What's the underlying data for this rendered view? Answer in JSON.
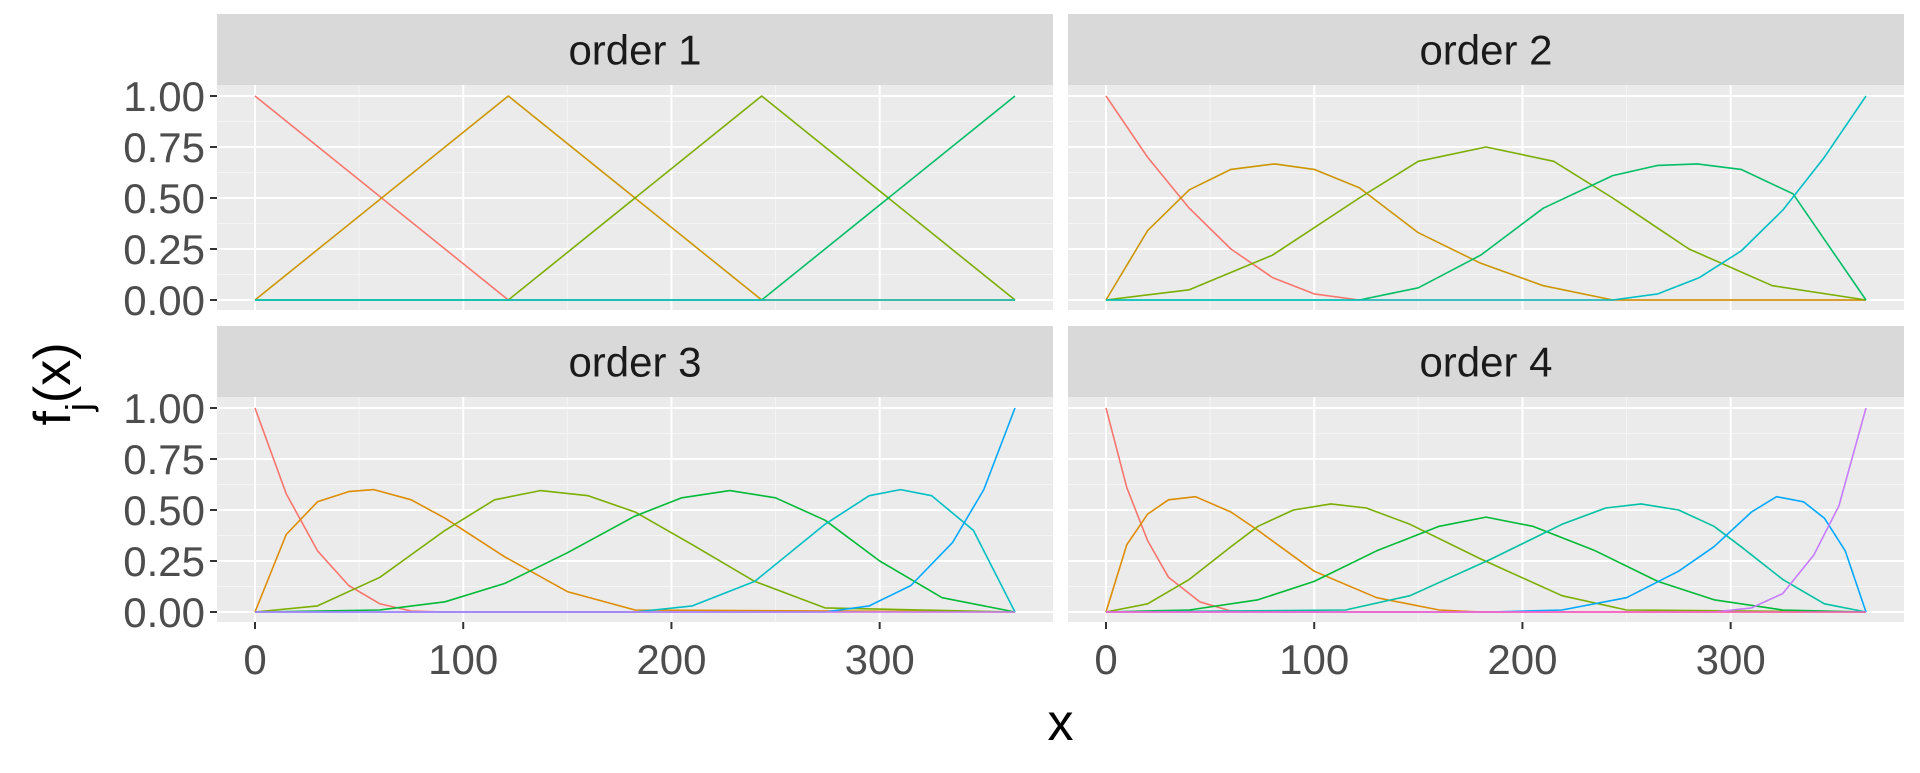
{
  "chart_data": {
    "type": "line",
    "xlabel": "x",
    "ylabel_base": "f",
    "ylabel_sub": "j",
    "ylabel_rest": "(x)",
    "x_range": [
      0,
      365
    ],
    "ylim": [
      0,
      1
    ],
    "x_ticks": [
      "0",
      "100",
      "200",
      "300"
    ],
    "x_tick_values": [
      0,
      100,
      200,
      300
    ],
    "y_ticks": [
      "0.00",
      "0.25",
      "0.50",
      "0.75",
      "1.00"
    ],
    "y_tick_values": [
      0,
      0.25,
      0.5,
      0.75,
      1.0
    ],
    "grid": true,
    "legend": "none",
    "panel_background": "#EBEBEB",
    "strip_background": "#D9D9D9",
    "panels": [
      {
        "title": "order 1",
        "series": [
          {
            "color": "#F8766D",
            "x": [
              0,
              121.67,
              365
            ],
            "y": [
              1,
              0,
              0
            ]
          },
          {
            "color": "#CD9600",
            "x": [
              0,
              121.67,
              243.33,
              365
            ],
            "y": [
              0,
              1,
              0,
              0
            ]
          },
          {
            "color": "#7CAE00",
            "x": [
              0,
              121.67,
              243.33,
              365
            ],
            "y": [
              0,
              0,
              1,
              0
            ]
          },
          {
            "color": "#00BE67",
            "x": [
              0,
              243.33,
              365
            ],
            "y": [
              0,
              0,
              1
            ]
          },
          {
            "color": "#00BFC4",
            "x": [
              0,
              365
            ],
            "y": [
              0,
              0
            ]
          }
        ]
      },
      {
        "title": "order 2",
        "series": [
          {
            "color": "#F8766D",
            "x": [
              0,
              20,
              40,
              60,
              80,
              100,
              121.67,
              365
            ],
            "y": [
              1,
              0.7,
              0.45,
              0.25,
              0.11,
              0.03,
              0,
              0
            ]
          },
          {
            "color": "#CD9600",
            "x": [
              0,
              20,
              40,
              60,
              81,
              100,
              121.67,
              150,
              180,
              210,
              243.33,
              365
            ],
            "y": [
              0,
              0.34,
              0.54,
              0.64,
              0.667,
              0.64,
              0.55,
              0.33,
              0.18,
              0.07,
              0,
              0
            ]
          },
          {
            "color": "#7CAE00",
            "x": [
              0,
              40,
              80,
              121.67,
              150,
              182.5,
              215,
              243.33,
              280,
              320,
              365
            ],
            "y": [
              0,
              0.05,
              0.22,
              0.5,
              0.68,
              0.75,
              0.68,
              0.5,
              0.25,
              0.07,
              0
            ]
          },
          {
            "color": "#00BE67",
            "x": [
              0,
              121.67,
              150,
              180,
              210,
              243.33,
              265,
              284,
              305,
              330,
              365
            ],
            "y": [
              0,
              0,
              0.06,
              0.22,
              0.45,
              0.61,
              0.66,
              0.667,
              0.64,
              0.52,
              0
            ]
          },
          {
            "color": "#00BFC4",
            "x": [
              0,
              243.33,
              265,
              285,
              305,
              325,
              345,
              365
            ],
            "y": [
              0,
              0,
              0.03,
              0.11,
              0.24,
              0.44,
              0.7,
              1
            ]
          }
        ]
      },
      {
        "title": "order 3",
        "series": [
          {
            "color": "#F8766D",
            "x": [
              0,
              15,
              30,
              45,
              60,
              75,
              91.25,
              365
            ],
            "y": [
              1,
              0.58,
              0.3,
              0.13,
              0.04,
              0.005,
              0,
              0
            ]
          },
          {
            "color": "#DE8C00",
            "x": [
              0,
              15,
              30,
              45,
              57,
              75,
              91.25,
              120,
              150,
              182.5,
              365
            ],
            "y": [
              0,
              0.38,
              0.54,
              0.59,
              0.6,
              0.55,
              0.46,
              0.27,
              0.1,
              0.01,
              0
            ]
          },
          {
            "color": "#7CAE00",
            "x": [
              0,
              30,
              60,
              91.25,
              115,
              137,
              160,
              182.5,
              210,
              240,
              273.75,
              365
            ],
            "y": [
              0,
              0.03,
              0.17,
              0.4,
              0.55,
              0.595,
              0.57,
              0.49,
              0.33,
              0.15,
              0.02,
              0
            ]
          },
          {
            "color": "#00BA38",
            "x": [
              0,
              60,
              91.25,
              120,
              150,
              182.5,
              205,
              228,
              250,
              273.75,
              300,
              330,
              365
            ],
            "y": [
              0,
              0.01,
              0.05,
              0.14,
              0.29,
              0.47,
              0.56,
              0.595,
              0.56,
              0.45,
              0.25,
              0.07,
              0
            ]
          },
          {
            "color": "#00BFC4",
            "x": [
              0,
              182.5,
              210,
              240,
              273.75,
              295,
              310,
              325,
              345,
              365
            ],
            "y": [
              0,
              0,
              0.03,
              0.15,
              0.43,
              0.57,
              0.6,
              0.57,
              0.4,
              0
            ]
          },
          {
            "color": "#00A9FF",
            "x": [
              0,
              273.75,
              295,
              315,
              335,
              350,
              365
            ],
            "y": [
              0,
              0,
              0.03,
              0.13,
              0.34,
              0.6,
              1
            ]
          },
          {
            "color": "#C77CFF",
            "x": [
              0,
              365
            ],
            "y": [
              0,
              0
            ]
          }
        ]
      },
      {
        "title": "order 4",
        "series": [
          {
            "color": "#F8766D",
            "x": [
              0,
              10,
              20,
              30,
              45,
              60,
              73,
              365
            ],
            "y": [
              1,
              0.61,
              0.35,
              0.17,
              0.05,
              0.005,
              0,
              0
            ]
          },
          {
            "color": "#DE8C00",
            "x": [
              0,
              10,
              20,
              30,
              43,
              60,
              73,
              100,
              130,
              160,
              180,
              365
            ],
            "y": [
              0,
              0.33,
              0.48,
              0.55,
              0.565,
              0.49,
              0.4,
              0.2,
              0.07,
              0.01,
              0,
              0
            ]
          },
          {
            "color": "#7CAE00",
            "x": [
              0,
              20,
              40,
              60,
              73,
              90,
              108,
              125,
              146,
              180,
              219,
              250,
              365
            ],
            "y": [
              0,
              0.04,
              0.16,
              0.32,
              0.42,
              0.5,
              0.53,
              0.51,
              0.43,
              0.26,
              0.08,
              0.01,
              0
            ]
          },
          {
            "color": "#00BA38",
            "x": [
              0,
              40,
              73,
              100,
              130,
              160,
              182.5,
              205,
              235,
              265,
              292,
              325,
              365
            ],
            "y": [
              0,
              0.01,
              0.06,
              0.15,
              0.3,
              0.42,
              0.465,
              0.42,
              0.3,
              0.15,
              0.06,
              0.01,
              0
            ]
          },
          {
            "color": "#00C1A3",
            "x": [
              0,
              115,
              146,
              185,
              219,
              240,
              257,
              275,
              292,
              305,
              325,
              345,
              365
            ],
            "y": [
              0,
              0.01,
              0.08,
              0.26,
              0.43,
              0.51,
              0.53,
              0.5,
              0.42,
              0.32,
              0.16,
              0.04,
              0
            ]
          },
          {
            "color": "#00A9FF",
            "x": [
              0,
              185,
              219,
              250,
              275,
              292,
              310,
              322,
              335,
              345,
              355,
              365
            ],
            "y": [
              0,
              0,
              0.01,
              0.07,
              0.2,
              0.32,
              0.49,
              0.565,
              0.54,
              0.46,
              0.3,
              0
            ]
          },
          {
            "color": "#C77CFF",
            "x": [
              0,
              292,
              310,
              325,
              340,
              352,
              365
            ],
            "y": [
              0,
              0,
              0.02,
              0.09,
              0.28,
              0.52,
              1
            ]
          },
          {
            "color": "#FF61CC",
            "x": [
              0,
              365
            ],
            "y": [
              0,
              0
            ]
          }
        ]
      }
    ]
  }
}
